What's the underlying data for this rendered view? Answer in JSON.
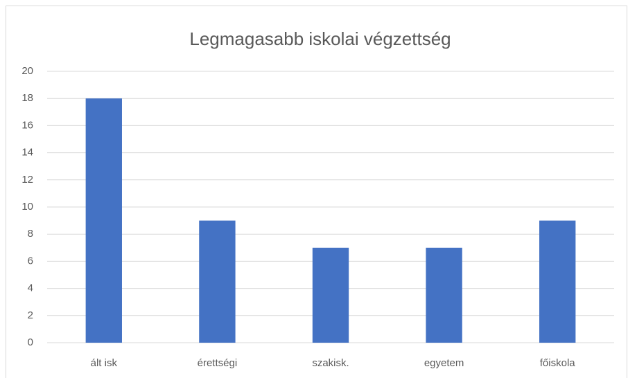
{
  "chart_data": {
    "type": "bar",
    "title": "Legmagasabb iskolai végzettség",
    "categories": [
      "ált isk",
      "érettségi",
      "szakisk.",
      "egyetem",
      "főiskola"
    ],
    "values": [
      18,
      9,
      7,
      7,
      9
    ],
    "color": "#4472c4",
    "ylim": [
      0,
      20
    ],
    "yticks": [
      0,
      2,
      4,
      6,
      8,
      10,
      12,
      14,
      16,
      18,
      20
    ],
    "grid": true
  }
}
